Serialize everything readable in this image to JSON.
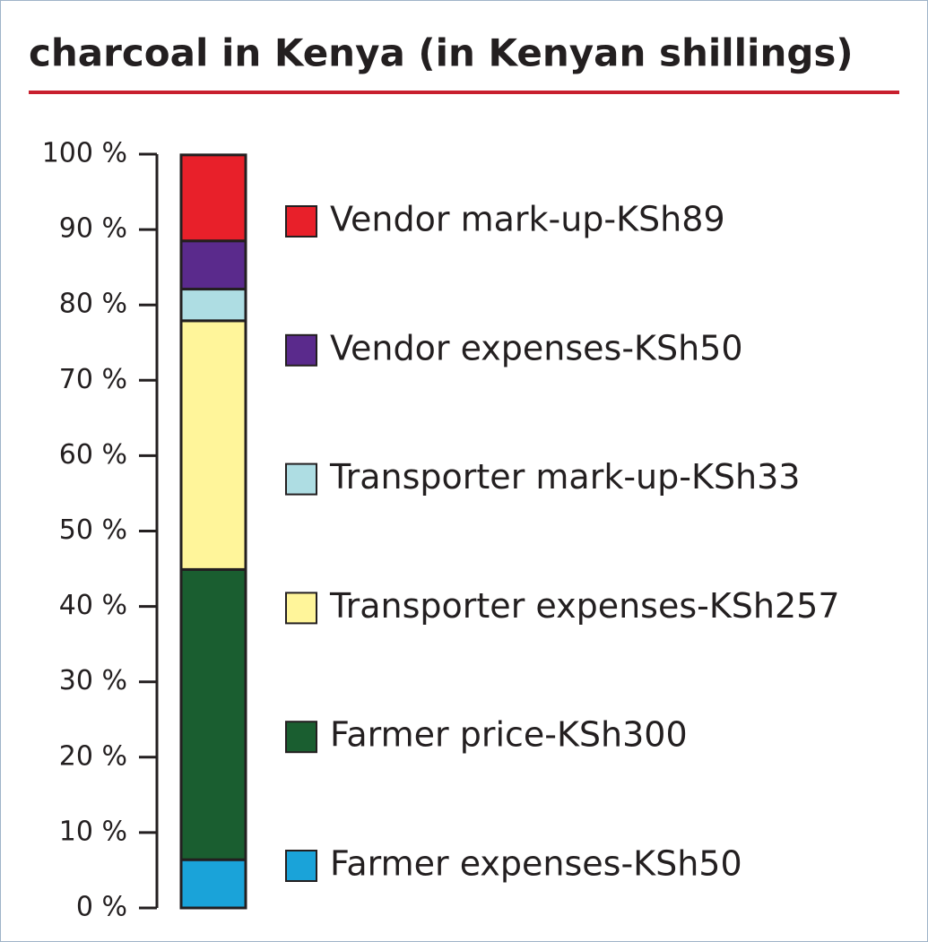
{
  "chart_data": {
    "type": "stacked_bar",
    "title": "charcoal in Kenya (in Kenyan shillings)",
    "series": [
      {
        "name": "Farmer expenses-KSh50",
        "color": "#1aa3d9",
        "values": [
          6.4
        ]
      },
      {
        "name": "Farmer price-KSh300",
        "color": "#1a5e30",
        "values": [
          38.5
        ]
      },
      {
        "name": "Transporter expenses-KSh257",
        "color": "#fff59a",
        "values": [
          33.0
        ]
      },
      {
        "name": "Transporter mark-up-KSh33",
        "color": "#aedde3",
        "values": [
          4.2
        ]
      },
      {
        "name": "Vendor expenses-KSh50",
        "color": "#5a2a8c",
        "values": [
          6.4
        ]
      },
      {
        "name": "Vendor mark-up-KSh89",
        "color": "#e8202a",
        "values": [
          11.4
        ]
      }
    ],
    "ylim": [
      0,
      100
    ],
    "yticks": [
      {
        "value": 0,
        "label": "0 %"
      },
      {
        "value": 10,
        "label": "10 %"
      },
      {
        "value": 20,
        "label": "20 %"
      },
      {
        "value": 30,
        "label": "30 %"
      },
      {
        "value": 40,
        "label": "40 %"
      },
      {
        "value": 50,
        "label": "50 %"
      },
      {
        "value": 60,
        "label": "60 %"
      },
      {
        "value": 70,
        "label": "70 %"
      },
      {
        "value": 80,
        "label": "80 %"
      },
      {
        "value": 90,
        "label": "90 %"
      },
      {
        "value": 100,
        "label": "100 %"
      }
    ]
  }
}
